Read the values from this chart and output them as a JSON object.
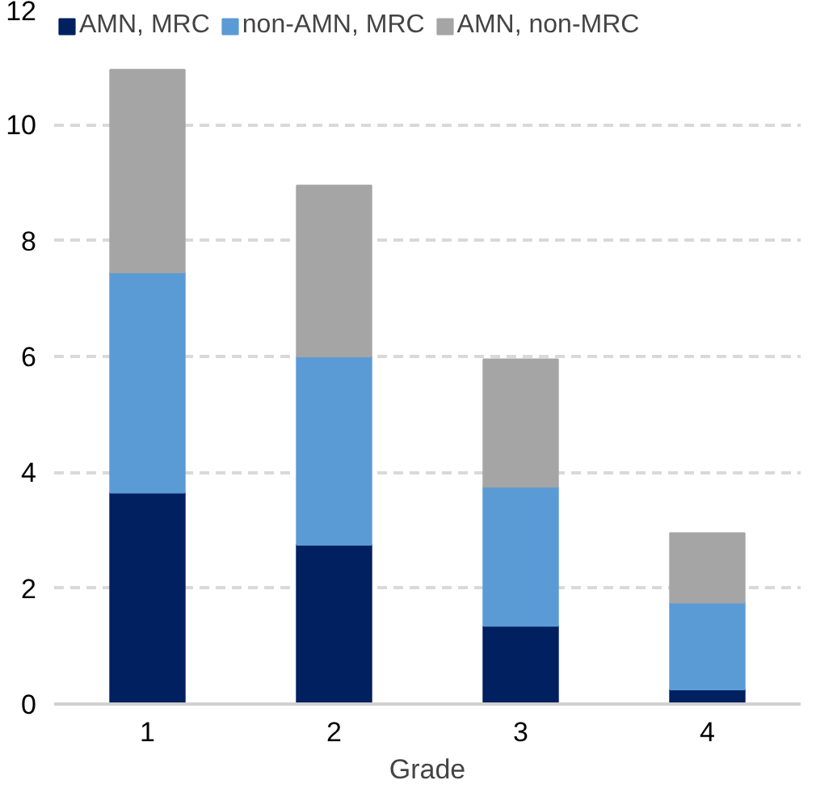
{
  "chart_data": {
    "type": "bar",
    "stacked": true,
    "xlabel": "Grade",
    "categories": [
      "1",
      "2",
      "3",
      "4"
    ],
    "series": [
      {
        "name": "AMN, MRC",
        "color": "#002060",
        "values": [
          3.65,
          2.75,
          1.35,
          0.25
        ]
      },
      {
        "name": "non-AMN, MRC",
        "color": "#5b9bd5",
        "values": [
          3.8,
          3.25,
          2.4,
          1.5
        ]
      },
      {
        "name": "AMN, non-MRC",
        "color": "#a5a5a5",
        "values": [
          3.5,
          2.95,
          2.2,
          1.2
        ]
      }
    ],
    "ylim": [
      0,
      12
    ],
    "yticks": [
      0,
      2,
      4,
      6,
      8,
      10,
      12
    ],
    "grid": "y",
    "legend": "top"
  }
}
